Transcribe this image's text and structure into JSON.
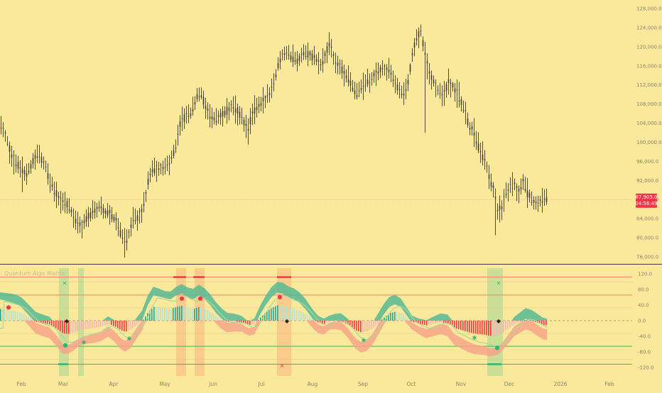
{
  "chart_data": [
    {
      "type": "candlestick",
      "title": "",
      "price_axis": {
        "ticks": [
          "128,000.0",
          "124,000.0",
          "120,000.0",
          "116,000.0",
          "112,000.0",
          "108,000.0",
          "104,000.0",
          "100,000.0",
          "96,000.0",
          "92,000.0",
          "88,000.0",
          "84,000.0",
          "80,000.0",
          "76,000.0"
        ],
        "range": [
          74500,
          129500
        ]
      },
      "last_price": {
        "value": "87,905.0",
        "countdown": "04:56:49",
        "color": "#f23645"
      },
      "time_axis": [
        "Feb",
        "Mar",
        "Apr",
        "May",
        "Jun",
        "Jul",
        "Aug",
        "Sep",
        "Oct",
        "Nov",
        "Dec",
        "2026",
        "Feb"
      ],
      "trend_points": [
        [
          0,
          104000
        ],
        [
          8,
          101000
        ],
        [
          14,
          98000
        ],
        [
          22,
          95500
        ],
        [
          30,
          94200
        ],
        [
          38,
          93500
        ],
        [
          46,
          96000
        ],
        [
          54,
          97500
        ],
        [
          62,
          95500
        ],
        [
          70,
          91500
        ],
        [
          78,
          89500
        ],
        [
          84,
          87500
        ],
        [
          92,
          87500
        ],
        [
          100,
          85500
        ],
        [
          108,
          83000
        ],
        [
          116,
          82500
        ],
        [
          124,
          84500
        ],
        [
          132,
          85500
        ],
        [
          140,
          86500
        ],
        [
          148,
          85200
        ],
        [
          156,
          84800
        ],
        [
          164,
          83500
        ],
        [
          170,
          80500
        ],
        [
          176,
          78500
        ],
        [
          180,
          80500
        ],
        [
          186,
          83000
        ],
        [
          194,
          84500
        ],
        [
          200,
          85500
        ],
        [
          204,
          88000
        ],
        [
          208,
          92000
        ],
        [
          214,
          94500
        ],
        [
          222,
          94200
        ],
        [
          230,
          95000
        ],
        [
          240,
          96000
        ],
        [
          248,
          99500
        ],
        [
          254,
          104500
        ],
        [
          262,
          105500
        ],
        [
          270,
          106500
        ],
        [
          276,
          109500
        ],
        [
          282,
          110500
        ],
        [
          290,
          106500
        ],
        [
          296,
          105500
        ],
        [
          302,
          104500
        ],
        [
          310,
          105500
        ],
        [
          318,
          106500
        ],
        [
          326,
          107500
        ],
        [
          334,
          106500
        ],
        [
          342,
          104500
        ],
        [
          348,
          102500
        ],
        [
          352,
          104500
        ],
        [
          360,
          107500
        ],
        [
          368,
          108000
        ],
        [
          376,
          109500
        ],
        [
          384,
          111500
        ],
        [
          390,
          115500
        ],
        [
          396,
          118500
        ],
        [
          402,
          119000
        ],
        [
          410,
          117500
        ],
        [
          418,
          117000
        ],
        [
          426,
          118500
        ],
        [
          434,
          118500
        ],
        [
          442,
          117500
        ],
        [
          450,
          116000
        ],
        [
          458,
          118500
        ],
        [
          464,
          121000
        ],
        [
          470,
          117500
        ],
        [
          478,
          116000
        ],
        [
          486,
          114000
        ],
        [
          494,
          112000
        ],
        [
          502,
          110000
        ],
        [
          508,
          111500
        ],
        [
          516,
          112500
        ],
        [
          524,
          113500
        ],
        [
          532,
          115000
        ],
        [
          540,
          115500
        ],
        [
          548,
          115000
        ],
        [
          556,
          112500
        ],
        [
          562,
          110500
        ],
        [
          568,
          110000
        ],
        [
          574,
          112500
        ],
        [
          580,
          118500
        ],
        [
          586,
          122000
        ],
        [
          592,
          123500
        ],
        [
          598,
          118500
        ],
        [
          604,
          114000
        ],
        [
          610,
          112500
        ],
        [
          618,
          110500
        ],
        [
          624,
          109500
        ],
        [
          630,
          112500
        ],
        [
          638,
          111500
        ],
        [
          646,
          109500
        ],
        [
          654,
          106500
        ],
        [
          660,
          103500
        ],
        [
          666,
          102500
        ],
        [
          672,
          99500
        ],
        [
          678,
          97500
        ],
        [
          684,
          95000
        ],
        [
          690,
          92000
        ],
        [
          696,
          89000
        ],
        [
          700,
          85500
        ],
        [
          706,
          86500
        ],
        [
          712,
          89500
        ],
        [
          718,
          90500
        ],
        [
          724,
          91000
        ],
        [
          730,
          89500
        ],
        [
          736,
          91500
        ],
        [
          742,
          89500
        ],
        [
          748,
          88000
        ],
        [
          754,
          87000
        ],
        [
          760,
          87500
        ],
        [
          766,
          88000
        ],
        [
          770,
          87900
        ]
      ],
      "spikes": [
        {
          "x": 598,
          "high": 121000,
          "low": 102000
        },
        {
          "x": 696,
          "high": 90000,
          "low": 80500
        },
        {
          "x": 176,
          "high": 82000,
          "low": 75800
        },
        {
          "x": 30,
          "high": 97000,
          "low": 89500
        },
        {
          "x": 348,
          "high": 105000,
          "low": 99500
        }
      ]
    },
    {
      "type": "oscillator",
      "title": "Quantum Algo Matrix",
      "y_ticks": [
        "120.0",
        "80.0",
        "40.0",
        "0.0",
        "-40.0",
        "-80.0",
        "-120.0"
      ],
      "range": [
        -135,
        135
      ],
      "levels": [
        {
          "value": 112,
          "color": "#f77b7b",
          "style": "solid"
        },
        {
          "value": 66,
          "color": "#f77b7b",
          "style": "solid"
        },
        {
          "value": 0,
          "color": "#8a8470",
          "style": "dashed"
        },
        {
          "value": -66,
          "color": "#4caf50",
          "style": "solid"
        },
        {
          "value": -112,
          "color": "#4caf50",
          "style": "solid"
        }
      ],
      "osc_points": [
        [
          0,
          55
        ],
        [
          10,
          50
        ],
        [
          20,
          45
        ],
        [
          30,
          35
        ],
        [
          40,
          15
        ],
        [
          50,
          -5
        ],
        [
          60,
          -12
        ],
        [
          70,
          -18
        ],
        [
          80,
          -40
        ],
        [
          88,
          -60
        ],
        [
          96,
          -62
        ],
        [
          104,
          -55
        ],
        [
          112,
          -45
        ],
        [
          122,
          -40
        ],
        [
          132,
          -35
        ],
        [
          142,
          -28
        ],
        [
          152,
          -15
        ],
        [
          160,
          -25
        ],
        [
          170,
          -45
        ],
        [
          176,
          -52
        ],
        [
          184,
          -42
        ],
        [
          192,
          -20
        ],
        [
          200,
          0
        ],
        [
          208,
          40
        ],
        [
          216,
          65
        ],
        [
          224,
          62
        ],
        [
          232,
          58
        ],
        [
          240,
          55
        ],
        [
          248,
          65
        ],
        [
          256,
          70
        ],
        [
          264,
          60
        ],
        [
          272,
          55
        ],
        [
          280,
          65
        ],
        [
          288,
          55
        ],
        [
          296,
          40
        ],
        [
          304,
          20
        ],
        [
          312,
          5
        ],
        [
          320,
          -5
        ],
        [
          330,
          -5
        ],
        [
          340,
          -8
        ],
        [
          350,
          -20
        ],
        [
          358,
          -15
        ],
        [
          366,
          15
        ],
        [
          374,
          40
        ],
        [
          382,
          60
        ],
        [
          390,
          72
        ],
        [
          398,
          70
        ],
        [
          406,
          60
        ],
        [
          414,
          55
        ],
        [
          422,
          45
        ],
        [
          430,
          30
        ],
        [
          440,
          5
        ],
        [
          448,
          -10
        ],
        [
          456,
          -15
        ],
        [
          464,
          -5
        ],
        [
          472,
          -2
        ],
        [
          480,
          -3
        ],
        [
          490,
          -20
        ],
        [
          500,
          -45
        ],
        [
          508,
          -55
        ],
        [
          516,
          -50
        ],
        [
          524,
          -35
        ],
        [
          532,
          -10
        ],
        [
          540,
          15
        ],
        [
          548,
          35
        ],
        [
          556,
          42
        ],
        [
          564,
          35
        ],
        [
          572,
          15
        ],
        [
          580,
          -5
        ],
        [
          590,
          -15
        ],
        [
          600,
          -22
        ],
        [
          610,
          -15
        ],
        [
          620,
          -8
        ],
        [
          630,
          -12
        ],
        [
          640,
          -35
        ],
        [
          650,
          -45
        ],
        [
          660,
          -55
        ],
        [
          670,
          -62
        ],
        [
          680,
          -65
        ],
        [
          690,
          -72
        ],
        [
          700,
          -70
        ],
        [
          708,
          -55
        ],
        [
          716,
          -35
        ],
        [
          724,
          -15
        ],
        [
          732,
          -5
        ],
        [
          740,
          5
        ],
        [
          748,
          0
        ],
        [
          756,
          -10
        ],
        [
          764,
          -20
        ],
        [
          770,
          -22
        ]
      ],
      "markers": [
        {
          "x": 91,
          "v": 98,
          "glyph": "×",
          "color": "#2bb673"
        },
        {
          "x": 702,
          "v": 98,
          "glyph": "×",
          "color": "#2bb673"
        },
        {
          "x": 397,
          "v": -115,
          "glyph": "×",
          "color": "#f23645"
        },
        {
          "x": 94,
          "v": 0,
          "glyph": "◆",
          "color": "#222222"
        },
        {
          "x": 404,
          "v": 0,
          "glyph": "◆",
          "color": "#222222"
        },
        {
          "x": 702,
          "v": 0,
          "glyph": "◆",
          "color": "#222222"
        },
        {
          "x": 92,
          "v": -62,
          "glyph": "●",
          "color": "#2bb673"
        },
        {
          "x": 118,
          "v": -56,
          "glyph": "✱",
          "color": "#2bb673"
        },
        {
          "x": 182,
          "v": -46,
          "glyph": "✱",
          "color": "#2bb673"
        },
        {
          "x": 512,
          "v": -50,
          "glyph": "✱",
          "color": "#2bb673"
        },
        {
          "x": 668,
          "v": -44,
          "glyph": "✱",
          "color": "#2bb673"
        },
        {
          "x": 700,
          "v": -68,
          "glyph": "●",
          "color": "#2bb673"
        },
        {
          "x": 12,
          "v": 36,
          "glyph": "●",
          "color": "#f23645"
        },
        {
          "x": 256,
          "v": 58,
          "glyph": "●",
          "color": "#f23645"
        },
        {
          "x": 282,
          "v": 58,
          "glyph": "●",
          "color": "#f23645"
        },
        {
          "x": 394,
          "v": 62,
          "glyph": "●",
          "color": "#f23645"
        }
      ],
      "red_dashes": [
        {
          "x1": 244,
          "x2": 262,
          "v": 112
        },
        {
          "x1": 272,
          "x2": 288,
          "v": 112
        },
        {
          "x1": 390,
          "x2": 410,
          "v": 112
        }
      ],
      "green_dashes": [
        {
          "x1": 82,
          "x2": 96,
          "v": -112
        },
        {
          "x1": 686,
          "x2": 706,
          "v": -112
        }
      ],
      "zones": [
        {
          "x1": 83,
          "x2": 97,
          "color": "#8fd18f"
        },
        {
          "x1": 110,
          "x2": 118,
          "color": "#8fd18f"
        },
        {
          "x1": 686,
          "x2": 708,
          "color": "#8fd18f"
        },
        {
          "x1": 248,
          "x2": 262,
          "color": "#f6a97a"
        },
        {
          "x1": 274,
          "x2": 288,
          "color": "#f6a97a"
        },
        {
          "x1": 390,
          "x2": 410,
          "color": "#f6a97a"
        }
      ]
    }
  ],
  "colors": {
    "background": "#fbe99b",
    "candle": "#3b3a36",
    "bull_bar": "#26a69a",
    "bear_bar": "#f23645",
    "upper_band": "#57b894",
    "lower_band": "#f7a48a"
  }
}
